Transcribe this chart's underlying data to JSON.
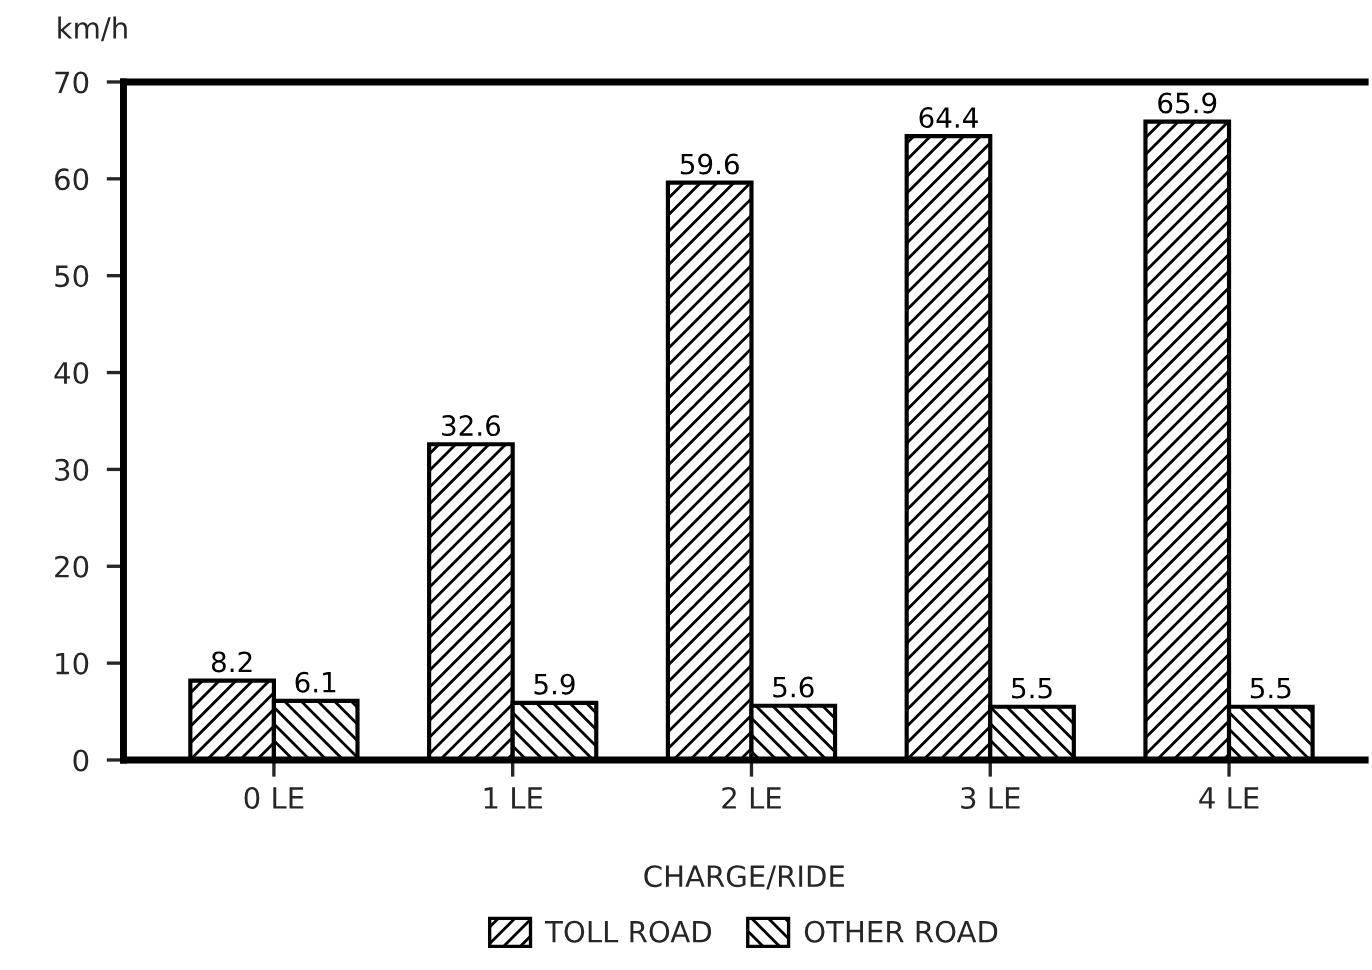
{
  "chart_data": {
    "type": "bar",
    "xlabel": "CHARGE/RIDE",
    "ylabel": "km/h",
    "categories": [
      "0 LE",
      "1 LE",
      "2 LE",
      "3 LE",
      "4 LE"
    ],
    "series": [
      {
        "name": "TOLL ROAD",
        "color": "#000000",
        "values": [
          8.2,
          32.6,
          59.6,
          64.4,
          65.9
        ]
      },
      {
        "name": "OTHER ROAD",
        "color": "#000000",
        "values": [
          6.1,
          5.9,
          5.6,
          5.5,
          5.5
        ]
      }
    ],
    "ylim": [
      0,
      70
    ],
    "yticks": [
      0,
      10,
      20,
      30,
      40,
      50,
      60,
      70
    ],
    "data_labels": true,
    "legend": "bottom",
    "grid": false
  }
}
